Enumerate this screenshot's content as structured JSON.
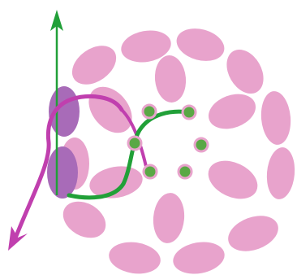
{
  "diagram": {
    "colors": {
      "petal": "#e8a3cc",
      "petal_overlap": "#a86bb8",
      "dot": "#5aa845",
      "dot_ring": "#e8a3cc",
      "green_path": "#21a038",
      "magenta_path": "#c03fae",
      "background": "#ffffff"
    },
    "icons": {
      "up_arrow": "arrow-up-icon",
      "down_arrow": "arrow-down-left-icon"
    }
  }
}
